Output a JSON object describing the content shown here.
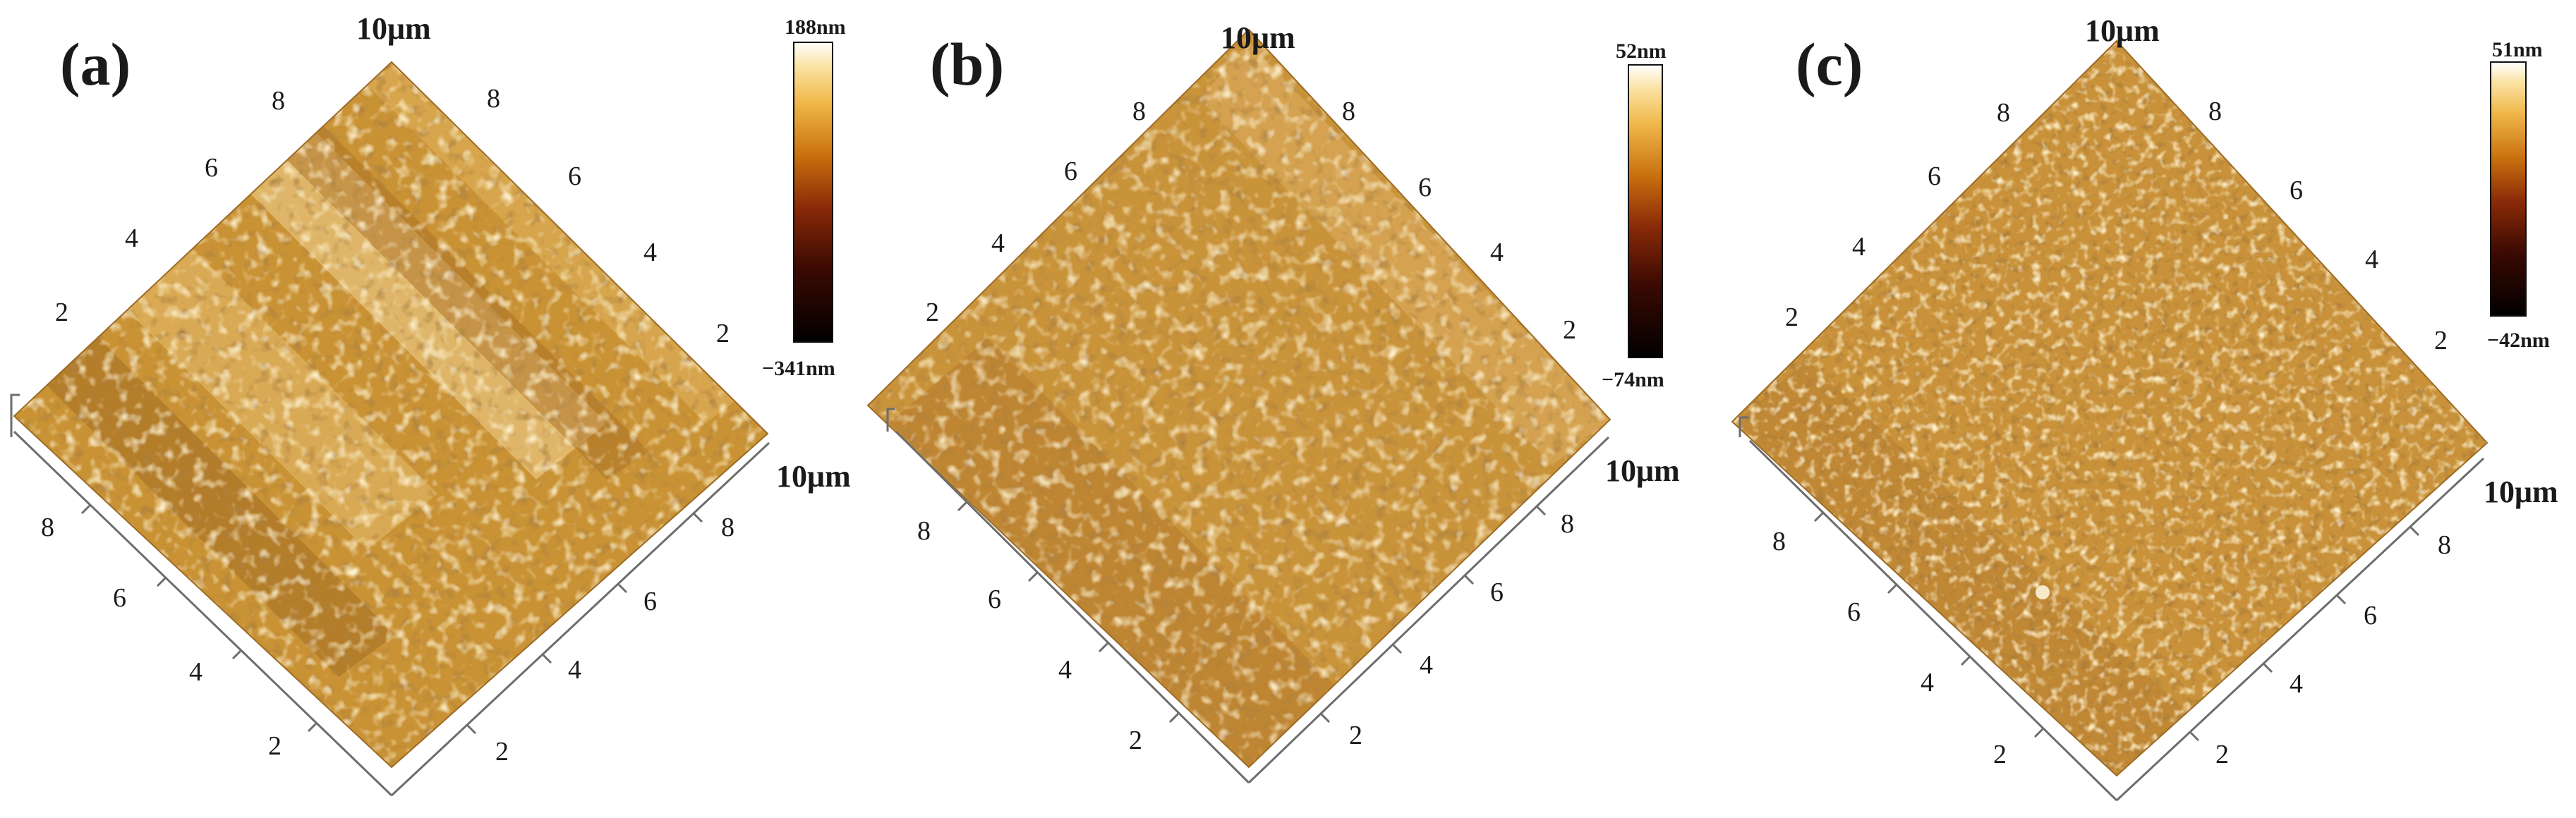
{
  "colors": {
    "surface_base": "#c99234",
    "surface_light": "#ebc476",
    "surface_dark": "#8a5418",
    "axis_line": "#6d6d6d",
    "text": "#1a1a1a"
  },
  "panels": [
    {
      "label": "(a)",
      "unit_top": "10μm",
      "unit_right": "10μm",
      "ticks_upper_left": [
        "2",
        "4",
        "6",
        "8"
      ],
      "ticks_upper_right": [
        "2",
        "4",
        "6",
        "8"
      ],
      "ticks_lower_left": [
        "2",
        "4",
        "6",
        "8"
      ],
      "ticks_lower_right": [
        "2",
        "4",
        "6",
        "8"
      ],
      "scale_max": "188nm",
      "scale_min": "−341nm",
      "feature": "ridged"
    },
    {
      "label": "(b)",
      "unit_top": "10μm",
      "unit_right": "10μm",
      "ticks_upper_left": [
        "2",
        "4",
        "6",
        "8"
      ],
      "ticks_upper_right": [
        "2",
        "4",
        "6",
        "8"
      ],
      "ticks_lower_left": [
        "2",
        "4",
        "6",
        "8"
      ],
      "ticks_lower_right": [
        "2",
        "4",
        "6",
        "8"
      ],
      "scale_max": "52nm",
      "scale_min": "−74nm",
      "feature": "grainy"
    },
    {
      "label": "(c)",
      "unit_top": "10μm",
      "unit_right": "10μm",
      "ticks_upper_left": [
        "2",
        "4",
        "6",
        "8"
      ],
      "ticks_upper_right": [
        "2",
        "4",
        "6",
        "8"
      ],
      "ticks_lower_left": [
        "2",
        "4",
        "6",
        "8"
      ],
      "ticks_lower_right": [
        "2",
        "4",
        "6",
        "8"
      ],
      "scale_max": "51nm",
      "scale_min": "−42nm",
      "feature": "fine"
    }
  ]
}
